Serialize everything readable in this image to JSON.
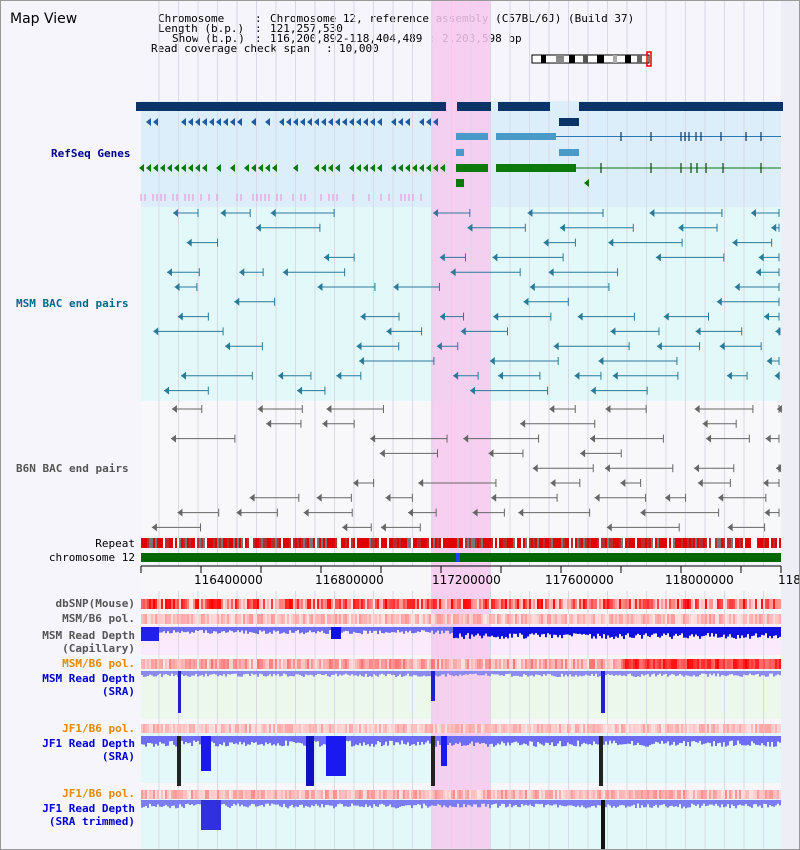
{
  "map_title": "Map View",
  "header": {
    "chromosome_label": "Chromosome",
    "chromosome_value": "Chromosome 12, reference assembly (C57BL/6J) (Build 37)",
    "length_label": "Length (b.p.)",
    "length_value": "121,257,530",
    "show_label": "Show (b.p.)",
    "show_value": "116,200,892-118,404,489 : 2,203,598 bp",
    "coverage_label": "Read coverage check span",
    "coverage_value": "10,000"
  },
  "tracks": {
    "refseq": "RefSeq Genes",
    "msm_bac": "MSM BAC end pairs",
    "b6n_bac": "B6N BAC end pairs",
    "repeat": "Repeat",
    "chromosome": "chromosome 12",
    "dbsnp": "dbSNP(Mouse)",
    "msm_b6_pol_1": "MSM/B6 pol.",
    "msm_read_depth_cap": "MSM Read Depth\n(Capillary)",
    "msm_b6_pol_2": "MSM/B6 pol.",
    "msm_read_depth_sra": "MSM Read Depth\n(SRA)",
    "jf1_b6_pol_1": "JF1/B6 pol.",
    "jf1_read_depth_sra": "JF1 Read Depth\n(SRA)",
    "jf1_b6_pol_2": "JF1/B6 pol.",
    "jf1_read_depth_trimmed": "JF1 Read Depth\n(SRA trimmed)"
  },
  "axis_ticks": [
    "116400000",
    "116800000",
    "117200000",
    "117600000",
    "118000000",
    "118"
  ],
  "colors": {
    "refseq_label": "#00008b",
    "msm_label": "#00688b",
    "b6n_label": "#555555",
    "orange_label": "#e38a00",
    "blue_label": "#0000cc",
    "highlight": "#f7c9ee"
  }
}
